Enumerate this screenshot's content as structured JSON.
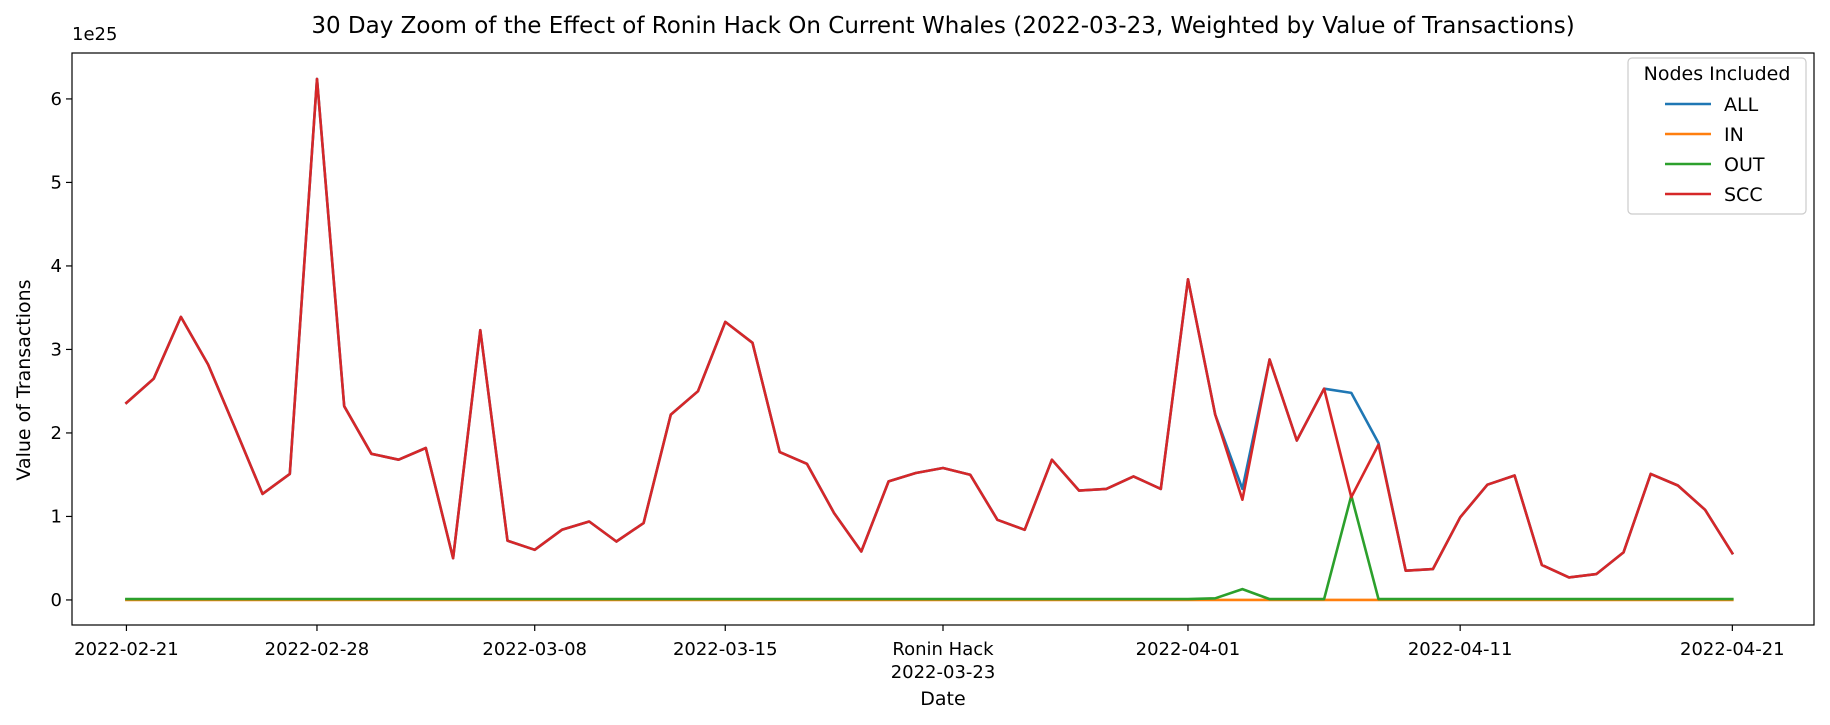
{
  "chart_data": {
    "type": "line",
    "title": "30 Day Zoom of the Effect of Ronin Hack On Current Whales (2022-03-23, Weighted by Value of Transactions)",
    "xlabel": "Date",
    "ylabel": "Value of Transactions",
    "y_multiplier": "1e25",
    "ylim": [
      -0.3,
      6.55
    ],
    "y_ticks": [
      0,
      1,
      2,
      3,
      4,
      5,
      6
    ],
    "y_tick_labels": [
      "0",
      "1",
      "2",
      "3",
      "4",
      "5",
      "6"
    ],
    "xlim": [
      "2022-02-19",
      "2022-04-24"
    ],
    "x_ticks": [
      {
        "date": "2022-02-21",
        "label": "2022-02-21"
      },
      {
        "date": "2022-02-28",
        "label": "2022-02-28"
      },
      {
        "date": "2022-03-08",
        "label": "2022-03-08"
      },
      {
        "date": "2022-03-15",
        "label": "2022-03-15"
      },
      {
        "date": "2022-03-23",
        "label": "Ronin Hack",
        "label2": "2022-03-23"
      },
      {
        "date": "2022-04-01",
        "label": "2022-04-01"
      },
      {
        "date": "2022-04-11",
        "label": "2022-04-11"
      },
      {
        "date": "2022-04-21",
        "label": "2022-04-21"
      }
    ],
    "legend": {
      "title": "Nodes Included",
      "position": "top-right"
    },
    "grid": false,
    "x": [
      "2022-02-21",
      "2022-02-22",
      "2022-02-23",
      "2022-02-24",
      "2022-02-25",
      "2022-02-26",
      "2022-02-27",
      "2022-02-28",
      "2022-03-01",
      "2022-03-02",
      "2022-03-03",
      "2022-03-04",
      "2022-03-05",
      "2022-03-06",
      "2022-03-07",
      "2022-03-08",
      "2022-03-09",
      "2022-03-10",
      "2022-03-11",
      "2022-03-12",
      "2022-03-13",
      "2022-03-14",
      "2022-03-15",
      "2022-03-16",
      "2022-03-17",
      "2022-03-18",
      "2022-03-19",
      "2022-03-20",
      "2022-03-21",
      "2022-03-22",
      "2022-03-23",
      "2022-03-24",
      "2022-03-25",
      "2022-03-26",
      "2022-03-27",
      "2022-03-28",
      "2022-03-29",
      "2022-03-30",
      "2022-03-31",
      "2022-04-01",
      "2022-04-02",
      "2022-04-03",
      "2022-04-04",
      "2022-04-05",
      "2022-04-06",
      "2022-04-07",
      "2022-04-08",
      "2022-04-09",
      "2022-04-10",
      "2022-04-11",
      "2022-04-12",
      "2022-04-13",
      "2022-04-14",
      "2022-04-15",
      "2022-04-16",
      "2022-04-17",
      "2022-04-18",
      "2022-04-19",
      "2022-04-20",
      "2022-04-21"
    ],
    "series": [
      {
        "name": "ALL",
        "color": "#1f77b4",
        "values": [
          2.36,
          2.65,
          3.39,
          2.82,
          2.05,
          1.27,
          1.51,
          6.24,
          2.32,
          1.75,
          1.68,
          1.82,
          0.5,
          3.23,
          0.71,
          0.6,
          0.84,
          0.94,
          0.7,
          0.92,
          2.22,
          2.5,
          3.33,
          3.08,
          1.77,
          1.63,
          1.04,
          0.58,
          1.42,
          1.52,
          1.58,
          1.5,
          0.96,
          0.84,
          1.68,
          1.31,
          1.33,
          1.48,
          1.33,
          3.84,
          2.22,
          1.33,
          2.88,
          1.91,
          2.53,
          2.48,
          1.88,
          0.35,
          0.37,
          0.99,
          1.38,
          1.49,
          0.42,
          0.27,
          0.31,
          0.57,
          1.51,
          1.37,
          1.08,
          0.56
        ]
      },
      {
        "name": "IN",
        "color": "#ff7f0e",
        "values": [
          0,
          0,
          0,
          0,
          0,
          0,
          0,
          0,
          0,
          0,
          0,
          0,
          0,
          0,
          0,
          0,
          0,
          0,
          0,
          0,
          0,
          0,
          0,
          0,
          0,
          0,
          0,
          0,
          0,
          0,
          0,
          0,
          0,
          0,
          0,
          0,
          0,
          0,
          0,
          0,
          0,
          0,
          0,
          0,
          0,
          0,
          0,
          0,
          0,
          0,
          0,
          0,
          0,
          0,
          0,
          0,
          0,
          0,
          0,
          0
        ]
      },
      {
        "name": "OUT",
        "color": "#2ca02c",
        "values": [
          0.01,
          0.01,
          0.01,
          0.01,
          0.01,
          0.01,
          0.01,
          0.01,
          0.01,
          0.01,
          0.01,
          0.01,
          0.01,
          0.01,
          0.01,
          0.01,
          0.01,
          0.01,
          0.01,
          0.01,
          0.01,
          0.01,
          0.01,
          0.01,
          0.01,
          0.01,
          0.01,
          0.01,
          0.01,
          0.01,
          0.01,
          0.01,
          0.01,
          0.01,
          0.01,
          0.01,
          0.01,
          0.01,
          0.01,
          0.01,
          0.02,
          0.13,
          0.01,
          0.01,
          0.01,
          1.25,
          0.01,
          0.01,
          0.01,
          0.01,
          0.01,
          0.01,
          0.01,
          0.01,
          0.01,
          0.01,
          0.01,
          0.01,
          0.01,
          0.01
        ]
      },
      {
        "name": "SCC",
        "color": "#d62728",
        "values": [
          2.36,
          2.65,
          3.39,
          2.82,
          2.05,
          1.27,
          1.51,
          6.24,
          2.32,
          1.75,
          1.68,
          1.82,
          0.5,
          3.23,
          0.71,
          0.6,
          0.84,
          0.94,
          0.7,
          0.92,
          2.22,
          2.5,
          3.33,
          3.08,
          1.77,
          1.63,
          1.04,
          0.58,
          1.42,
          1.52,
          1.58,
          1.5,
          0.96,
          0.84,
          1.68,
          1.31,
          1.33,
          1.48,
          1.33,
          3.84,
          2.22,
          1.2,
          2.88,
          1.91,
          2.53,
          1.23,
          1.86,
          0.35,
          0.37,
          0.99,
          1.38,
          1.49,
          0.42,
          0.27,
          0.31,
          0.57,
          1.51,
          1.37,
          1.08,
          0.56
        ]
      }
    ]
  }
}
